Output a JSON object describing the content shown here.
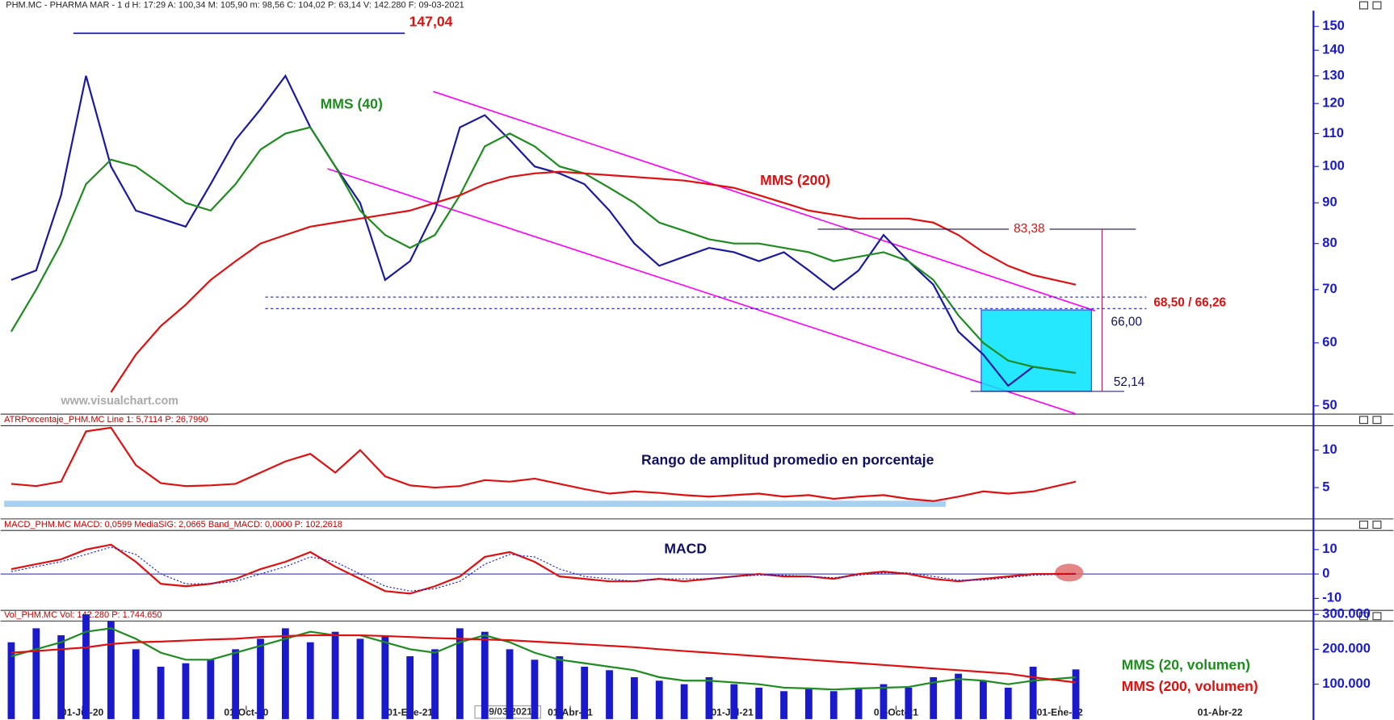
{
  "chart_data": [
    {
      "type": "line",
      "title": "PHM.MC - PHARMA MAR -  1 d  H: 17:29  A: 100,34  M: 105,90  m: 98,56  C: 104,02  P: 63,14  V: 142.280  F: 09-03-2021",
      "log_scale": true,
      "xlim": [
        "2020-05-16",
        "2022-05-22"
      ],
      "ylim": [
        49,
        157
      ],
      "yticks": [
        50,
        60,
        70,
        80,
        90,
        100,
        110,
        120,
        130,
        140,
        150
      ],
      "x": [
        "2020-05-22",
        "2020-06-05",
        "2020-06-19",
        "2020-07-03",
        "2020-07-17",
        "2020-07-31",
        "2020-08-14",
        "2020-08-28",
        "2020-09-11",
        "2020-09-25",
        "2020-10-09",
        "2020-10-23",
        "2020-11-06",
        "2020-11-20",
        "2020-12-04",
        "2020-12-18",
        "2021-01-01",
        "2021-01-15",
        "2021-01-29",
        "2021-02-12",
        "2021-02-26",
        "2021-03-12",
        "2021-03-26",
        "2021-04-09",
        "2021-04-23",
        "2021-05-07",
        "2021-05-21",
        "2021-06-04",
        "2021-06-18",
        "2021-07-02",
        "2021-07-16",
        "2021-07-30",
        "2021-08-13",
        "2021-08-27",
        "2021-09-10",
        "2021-09-24",
        "2021-10-08",
        "2021-10-22",
        "2021-11-05",
        "2021-11-19",
        "2021-12-03",
        "2021-12-17",
        "2022-01-10"
      ],
      "series": [
        {
          "color": "#1a1aa0",
          "values": [
            72,
            74,
            92,
            130,
            100,
            88,
            86,
            84,
            95,
            108,
            118,
            130,
            112,
            100,
            90,
            72,
            76,
            88,
            112,
            116,
            108,
            100,
            98,
            95,
            88,
            80,
            75,
            77,
            79,
            78,
            76,
            78,
            74,
            70,
            74,
            82,
            76,
            71,
            62,
            58,
            53,
            56,
            55
          ]
        },
        {
          "name": "MMS (40)",
          "color": "#1e8c1e",
          "values": [
            62,
            70,
            80,
            95,
            102,
            100,
            95,
            90,
            88,
            95,
            105,
            110,
            112,
            100,
            88,
            82,
            79,
            82,
            92,
            106,
            110,
            106,
            100,
            98,
            94,
            90,
            85,
            83,
            81,
            80,
            80,
            79,
            78,
            76,
            77,
            78,
            76,
            72,
            65,
            60,
            57,
            56,
            55
          ]
        },
        {
          "name": "MMS (200)",
          "color": "#e01010",
          "values": [
            null,
            null,
            null,
            null,
            52,
            58,
            63,
            67,
            72,
            76,
            80,
            82,
            84,
            85,
            86,
            87,
            88,
            90,
            92,
            95,
            97,
            98,
            98.5,
            98,
            97.5,
            97,
            96.5,
            96,
            95,
            94,
            92,
            90,
            88,
            87,
            86,
            86,
            86,
            85,
            82,
            78,
            75,
            73,
            71
          ]
        }
      ],
      "levels": [
        {
          "value": 147.04,
          "label": "147,04"
        },
        {
          "value": 83.38,
          "label": "83,38"
        },
        {
          "values": [
            68.5,
            66.26
          ],
          "label": "68,50 / 66,26"
        },
        {
          "value": 66,
          "label": "66,00"
        },
        {
          "value": 52.14,
          "label": "52,14"
        }
      ],
      "watermark": "www.visualchart.com"
    },
    {
      "type": "line",
      "title": "ATRPorcentaje_PHM.MC  Line 1: 5,7114  P: 26,7990",
      "annotation": "Rango de amplitud promedio en porcentaje",
      "xlim": [
        "2020-05-16",
        "2022-05-22"
      ],
      "ylim": [
        1,
        13.2
      ],
      "yticks": [
        5,
        10
      ],
      "x": [
        "2020-05-22",
        "2020-06-05",
        "2020-06-19",
        "2020-07-03",
        "2020-07-17",
        "2020-07-31",
        "2020-08-14",
        "2020-08-28",
        "2020-09-11",
        "2020-09-25",
        "2020-10-09",
        "2020-10-23",
        "2020-11-06",
        "2020-11-20",
        "2020-12-04",
        "2020-12-18",
        "2021-01-01",
        "2021-01-15",
        "2021-01-29",
        "2021-02-12",
        "2021-02-26",
        "2021-03-12",
        "2021-03-26",
        "2021-04-09",
        "2021-04-23",
        "2021-05-07",
        "2021-05-21",
        "2021-06-04",
        "2021-06-18",
        "2021-07-02",
        "2021-07-16",
        "2021-07-30",
        "2021-08-13",
        "2021-08-27",
        "2021-09-10",
        "2021-09-24",
        "2021-10-08",
        "2021-10-22",
        "2021-11-05",
        "2021-11-19",
        "2021-12-03",
        "2021-12-17",
        "2022-01-10"
      ],
      "series": [
        {
          "color": "#e01010",
          "values": [
            5.5,
            5.2,
            5.8,
            12.5,
            13,
            8,
            5.6,
            5.2,
            5.3,
            5.5,
            7,
            8.5,
            9.5,
            7,
            10,
            6.5,
            5.3,
            5,
            5.2,
            6,
            5.8,
            6.2,
            5.5,
            4.8,
            4.2,
            4.5,
            4.3,
            4,
            3.8,
            4,
            4.2,
            3.8,
            4,
            3.5,
            3.8,
            4,
            3.5,
            3.2,
            3.8,
            4.5,
            4.2,
            4.5,
            5.8
          ]
        }
      ]
    },
    {
      "type": "line",
      "title": "MACD_PHM.MC  MACD: 0,0599  MediaSIG: 2,0665  Band_MACD: 0,0000  P: 102,2618",
      "annotation": "MACD",
      "xlim": [
        "2020-05-16",
        "2022-05-22"
      ],
      "ylim": [
        -14.7,
        18
      ],
      "yticks": [
        -10,
        0,
        10
      ],
      "x": [
        "2020-05-22",
        "2020-06-05",
        "2020-06-19",
        "2020-07-03",
        "2020-07-17",
        "2020-07-31",
        "2020-08-14",
        "2020-08-28",
        "2020-09-11",
        "2020-09-25",
        "2020-10-09",
        "2020-10-23",
        "2020-11-06",
        "2020-11-20",
        "2020-12-04",
        "2020-12-18",
        "2021-01-01",
        "2021-01-15",
        "2021-01-29",
        "2021-02-12",
        "2021-02-26",
        "2021-03-12",
        "2021-03-26",
        "2021-04-09",
        "2021-04-23",
        "2021-05-07",
        "2021-05-21",
        "2021-06-04",
        "2021-06-18",
        "2021-07-02",
        "2021-07-16",
        "2021-07-30",
        "2021-08-13",
        "2021-08-27",
        "2021-09-10",
        "2021-09-24",
        "2021-10-08",
        "2021-10-22",
        "2021-11-05",
        "2021-11-19",
        "2021-12-03",
        "2021-12-17",
        "2022-01-10"
      ],
      "series": [
        {
          "color": "#e01010",
          "values": [
            2,
            4,
            6,
            10,
            12,
            5,
            -4,
            -5,
            -4,
            -2,
            2,
            5,
            9,
            3,
            -2,
            -7,
            -8,
            -5,
            -1,
            7,
            9,
            5,
            -1,
            -2,
            -3,
            -3,
            -2,
            -3,
            -2,
            -1,
            0,
            -1,
            -1,
            -2,
            0,
            1,
            0,
            -2,
            -3,
            -2,
            -1,
            0,
            0.0599
          ]
        },
        {
          "color": "#1a1acc",
          "dashed": true,
          "values": [
            1,
            3,
            5,
            8,
            11,
            8,
            0,
            -4,
            -4,
            -3,
            0,
            3,
            7,
            5,
            0,
            -5,
            -7,
            -6,
            -3,
            4,
            8,
            7,
            2,
            -1,
            -2,
            -3,
            -2,
            -2,
            -2,
            -1,
            -0.5,
            -0.5,
            -1,
            -1.5,
            -0.5,
            0.5,
            0.5,
            -1,
            -2.5,
            -2.5,
            -1.5,
            -0.5,
            0
          ]
        }
      ]
    },
    {
      "type": "bar",
      "title": "Vol_PHM.MC  Vol: 142.280  P: 1.744.650",
      "annotation": "09/03/2021",
      "xlim": [
        "2020-05-16",
        "2022-05-22"
      ],
      "ylim": [
        0,
        305000
      ],
      "yticks": [
        {
          "value": 100000,
          "label": "100.000"
        },
        {
          "value": 200000,
          "label": "200.000"
        },
        {
          "value": 300000,
          "label": "300.000"
        }
      ],
      "xticks": [
        {
          "value": "2020-07-01",
          "label": "01-Jul-20"
        },
        {
          "value": "2020-10-01",
          "label": "01-Oct-20"
        },
        {
          "value": "2021-01-01",
          "label": "01-Ene-21"
        },
        {
          "value": "2021-04-01",
          "label": "01-Abr-21"
        },
        {
          "value": "2021-07-01",
          "label": "01-Jul-21"
        },
        {
          "value": "2021-10-01",
          "label": "01-Oct-21"
        },
        {
          "value": "2022-01-01",
          "label": "01-Ene-22"
        },
        {
          "value": "2022-04-01",
          "label": "01-Abr-22"
        }
      ],
      "x": [
        "2020-05-22",
        "2020-06-05",
        "2020-06-19",
        "2020-07-03",
        "2020-07-17",
        "2020-07-31",
        "2020-08-14",
        "2020-08-28",
        "2020-09-11",
        "2020-09-25",
        "2020-10-09",
        "2020-10-23",
        "2020-11-06",
        "2020-11-20",
        "2020-12-04",
        "2020-12-18",
        "2021-01-01",
        "2021-01-15",
        "2021-01-29",
        "2021-02-12",
        "2021-02-26",
        "2021-03-12",
        "2021-03-26",
        "2021-04-09",
        "2021-04-23",
        "2021-05-07",
        "2021-05-21",
        "2021-06-04",
        "2021-06-18",
        "2021-07-02",
        "2021-07-16",
        "2021-07-30",
        "2021-08-13",
        "2021-08-27",
        "2021-09-10",
        "2021-09-24",
        "2021-10-08",
        "2021-10-22",
        "2021-11-05",
        "2021-11-19",
        "2021-12-03",
        "2021-12-17",
        "2022-01-10"
      ],
      "series": [
        {
          "color": "#1a1acc",
          "values": [
            220000,
            260000,
            240000,
            300000,
            280000,
            200000,
            150000,
            160000,
            170000,
            200000,
            230000,
            260000,
            220000,
            250000,
            230000,
            240000,
            180000,
            200000,
            260000,
            250000,
            200000,
            170000,
            180000,
            150000,
            140000,
            120000,
            110000,
            100000,
            120000,
            100000,
            90000,
            80000,
            90000,
            80000,
            90000,
            100000,
            90000,
            120000,
            130000,
            110000,
            90000,
            150000,
            142280
          ]
        },
        {
          "name": "MMS (20, volumen)",
          "type": "line",
          "color": "#1e8c1e",
          "values": [
            180000,
            200000,
            220000,
            250000,
            260000,
            230000,
            190000,
            170000,
            170000,
            190000,
            210000,
            230000,
            250000,
            240000,
            240000,
            220000,
            200000,
            190000,
            220000,
            240000,
            220000,
            190000,
            170000,
            160000,
            150000,
            140000,
            120000,
            110000,
            110000,
            105000,
            100000,
            90000,
            88000,
            85000,
            88000,
            90000,
            92000,
            105000,
            115000,
            110000,
            100000,
            110000,
            120000
          ]
        },
        {
          "name": "MMS (200, volumen)",
          "type": "line",
          "color": "#e01010",
          "values": [
            190000,
            195000,
            200000,
            205000,
            215000,
            220000,
            222000,
            225000,
            228000,
            230000,
            235000,
            238000,
            240000,
            240000,
            240000,
            238000,
            235000,
            232000,
            230000,
            228000,
            226000,
            222000,
            218000,
            214000,
            210000,
            206000,
            200000,
            195000,
            190000,
            185000,
            180000,
            175000,
            170000,
            165000,
            160000,
            155000,
            150000,
            145000,
            140000,
            135000,
            130000,
            120000,
            105000
          ]
        }
      ]
    }
  ]
}
